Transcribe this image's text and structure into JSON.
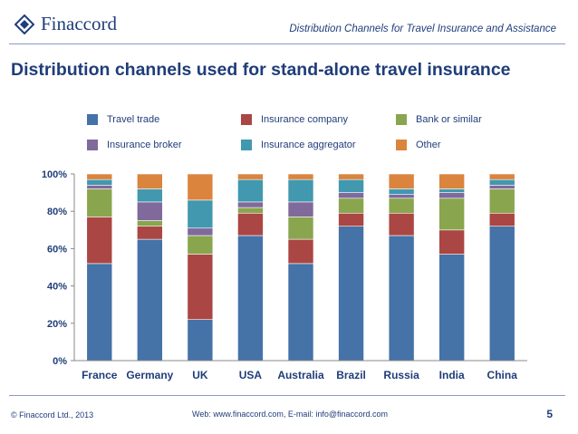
{
  "header": {
    "logo_text": "Finaccord",
    "title": "Distribution Channels for Travel Insurance and Assistance"
  },
  "page_title": "Distribution channels used for stand-alone travel insurance",
  "chart_data": {
    "type": "bar",
    "stacked": true,
    "title": "Distribution channels used for stand-alone travel insurance",
    "categories": [
      "France",
      "Germany",
      "UK",
      "USA",
      "Australia",
      "Brazil",
      "Russia",
      "India",
      "China"
    ],
    "y_ticks": [
      "0%",
      "20%",
      "40%",
      "60%",
      "80%",
      "100%"
    ],
    "ylim": [
      0,
      100
    ],
    "legend_placement": "top",
    "series": [
      {
        "name": "Travel trade",
        "color": "#4572a7",
        "values": [
          52,
          65,
          22,
          67,
          52,
          72,
          67,
          57,
          72
        ]
      },
      {
        "name": "Insurance company",
        "color": "#aa4643",
        "values": [
          25,
          7,
          35,
          12,
          13,
          7,
          12,
          13,
          7
        ]
      },
      {
        "name": "Bank or similar",
        "color": "#89a54e",
        "values": [
          15,
          3,
          10,
          3,
          12,
          8,
          8,
          17,
          13
        ]
      },
      {
        "name": "Insurance broker",
        "color": "#80699b",
        "values": [
          2,
          10,
          4,
          3,
          8,
          3,
          2,
          3,
          2
        ]
      },
      {
        "name": "Insurance aggregator",
        "color": "#4198af",
        "values": [
          3,
          7,
          15,
          12,
          12,
          7,
          3,
          2,
          3
        ]
      },
      {
        "name": "Other",
        "color": "#db843d",
        "values": [
          3,
          8,
          14,
          3,
          3,
          3,
          8,
          8,
          3
        ]
      }
    ]
  },
  "footer": {
    "copyright": "© Finaccord Ltd., 2013",
    "contact": "Web: www.finaccord.com, E-mail: info@finaccord.com",
    "page_number": "5"
  }
}
